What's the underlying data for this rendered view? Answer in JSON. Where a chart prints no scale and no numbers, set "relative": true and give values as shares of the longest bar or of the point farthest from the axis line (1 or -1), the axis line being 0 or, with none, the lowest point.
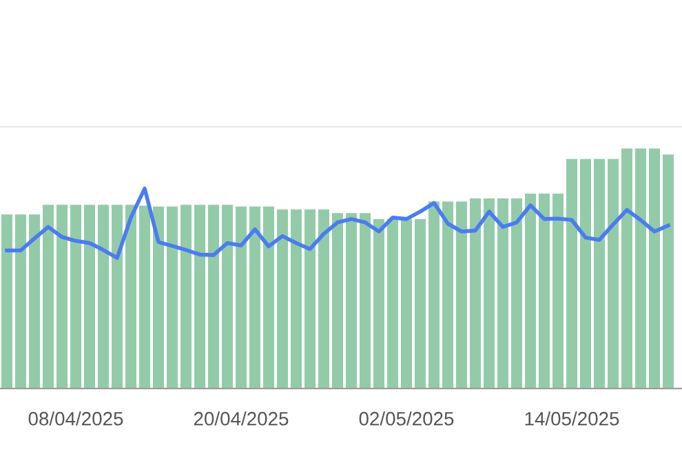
{
  "chart_data": {
    "type": "bar",
    "relative": true,
    "x": [
      "2025-04-03",
      "2025-04-04",
      "2025-04-05",
      "2025-04-06",
      "2025-04-07",
      "2025-04-08",
      "2025-04-09",
      "2025-04-10",
      "2025-04-11",
      "2025-04-12",
      "2025-04-13",
      "2025-04-14",
      "2025-04-15",
      "2025-04-16",
      "2025-04-17",
      "2025-04-18",
      "2025-04-19",
      "2025-04-20",
      "2025-04-21",
      "2025-04-22",
      "2025-04-23",
      "2025-04-24",
      "2025-04-25",
      "2025-04-26",
      "2025-04-27",
      "2025-04-28",
      "2025-04-29",
      "2025-04-30",
      "2025-05-01",
      "2025-05-02",
      "2025-05-03",
      "2025-05-04",
      "2025-05-05",
      "2025-05-06",
      "2025-05-07",
      "2025-05-08",
      "2025-05-09",
      "2025-05-10",
      "2025-05-11",
      "2025-05-12",
      "2025-05-13",
      "2025-05-14",
      "2025-05-15",
      "2025-05-16",
      "2025-05-17",
      "2025-05-18",
      "2025-05-19",
      "2025-05-20",
      "2025-05-21"
    ],
    "xlim": [
      "2025-04-02T12:00",
      "2025-05-22"
    ],
    "xticks": [
      {
        "value": "2025-04-08",
        "label": "08/04/2025"
      },
      {
        "value": "2025-04-20",
        "label": "20/04/2025"
      },
      {
        "value": "2025-05-02",
        "label": "02/05/2025"
      },
      {
        "value": "2025-05-14",
        "label": "14/05/2025"
      }
    ],
    "series": [
      {
        "color": "#93cba9",
        "values": [
          0.725,
          0.725,
          0.725,
          0.765,
          0.765,
          0.765,
          0.765,
          0.765,
          0.765,
          0.765,
          0.762,
          0.758,
          0.758,
          0.765,
          0.765,
          0.765,
          0.765,
          0.758,
          0.758,
          0.758,
          0.746,
          0.746,
          0.746,
          0.746,
          0.731,
          0.731,
          0.731,
          0.706,
          0.706,
          0.706,
          0.706,
          0.779,
          0.779,
          0.779,
          0.792,
          0.792,
          0.792,
          0.792,
          0.812,
          0.812,
          0.812,
          0.956,
          0.956,
          0.956,
          0.956,
          1,
          1,
          1,
          0.975
        ]
      },
      {
        "type": "line",
        "color": "#4a7cf0",
        "values": [
          0.575,
          0.575,
          0.625,
          0.673,
          0.631,
          0.615,
          0.606,
          0.577,
          0.544,
          0.712,
          0.833,
          0.61,
          0.594,
          0.577,
          0.558,
          0.556,
          0.606,
          0.596,
          0.663,
          0.592,
          0.635,
          0.606,
          0.581,
          0.644,
          0.692,
          0.706,
          0.692,
          0.654,
          0.712,
          0.706,
          0.737,
          0.773,
          0.687,
          0.654,
          0.658,
          0.737,
          0.673,
          0.692,
          0.763,
          0.706,
          0.708,
          0.702,
          0.629,
          0.619,
          0.683,
          0.744,
          0.702,
          0.654,
          0.679
        ]
      }
    ]
  }
}
